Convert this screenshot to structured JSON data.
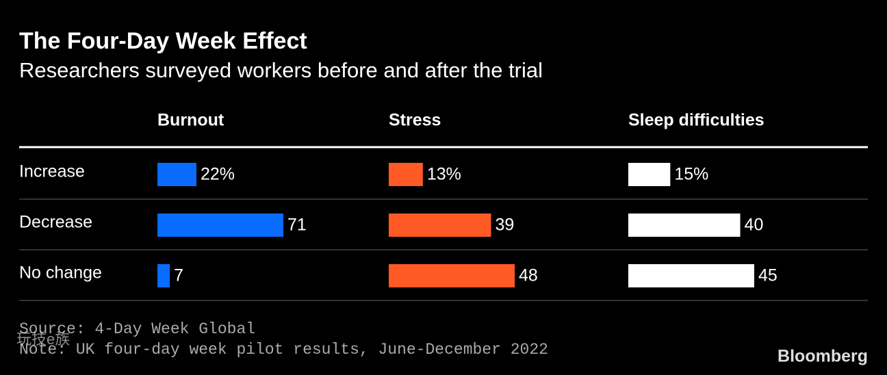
{
  "header": {
    "title": "The Four-Day Week Effect",
    "subtitle": "Researchers surveyed workers before and after the trial"
  },
  "chart_data": {
    "type": "bar",
    "categories": [
      "Increase",
      "Decrease",
      "No change"
    ],
    "series": [
      {
        "name": "Burnout",
        "color": "#0a6cff",
        "values": [
          22,
          71,
          7
        ],
        "value_labels": [
          "22%",
          "71",
          "7"
        ],
        "xlim": [
          0,
          71
        ]
      },
      {
        "name": "Stress",
        "color": "#ff5a26",
        "values": [
          13,
          39,
          48
        ],
        "value_labels": [
          "13%",
          "39",
          "48"
        ],
        "xlim": [
          0,
          48
        ]
      },
      {
        "name": "Sleep difficulties",
        "color": "#ffffff",
        "values": [
          15,
          40,
          45
        ],
        "value_labels": [
          "15%",
          "40",
          "45"
        ],
        "xlim": [
          0,
          45
        ]
      }
    ]
  },
  "footer": {
    "source": "Source: 4-Day Week Global",
    "note": "Note: UK four-day week pilot results, June-December 2022",
    "logo": "Bloomberg",
    "watermark": "玩技e族"
  }
}
